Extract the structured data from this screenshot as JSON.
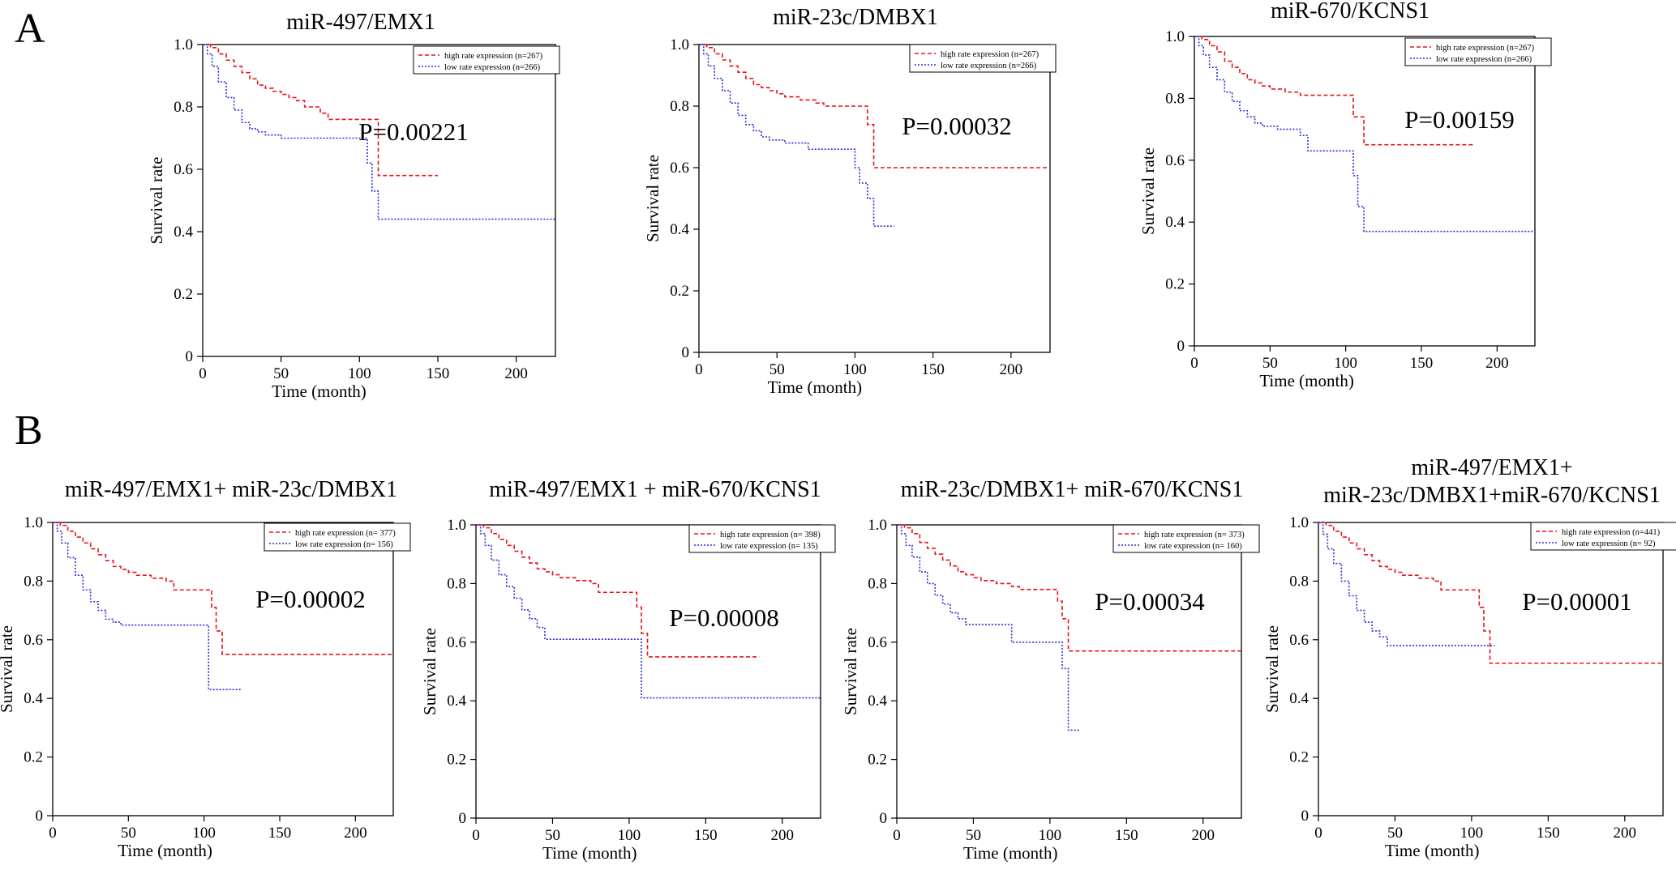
{
  "panel_labels": {
    "A": "A",
    "B": "B"
  },
  "colors": {
    "high": "#e8121c",
    "low": "#2b2bd9",
    "axis": "#000000"
  },
  "chart_data": [
    {
      "type": "line",
      "id": "a1",
      "title": "miR-497/EMX1",
      "xlabel": "Time (month)",
      "ylabel": "Survival rate",
      "xlim": [
        0,
        225
      ],
      "ylim": [
        0,
        1.0
      ],
      "xticks": [
        0,
        50,
        100,
        150,
        200
      ],
      "yticks": [
        0,
        0.2,
        0.4,
        0.6,
        0.8,
        1.0
      ],
      "xtick_labels": [
        "0",
        "50",
        "100",
        "150",
        "200"
      ],
      "ytick_labels": [
        "0",
        "0.2",
        "0.4",
        "0.6",
        "0.8",
        "1.0"
      ],
      "p_value": "P=0.00221",
      "legend": {
        "high": "high rate expression (n=267)",
        "low": "low rate expression (n=266)"
      },
      "series": [
        {
          "name": "high rate expression (n=267)",
          "key": "high",
          "x": [
            0,
            5,
            10,
            15,
            20,
            25,
            30,
            35,
            40,
            45,
            50,
            55,
            60,
            65,
            75,
            80,
            110,
            112,
            150
          ],
          "y": [
            1.0,
            0.99,
            0.97,
            0.95,
            0.93,
            0.91,
            0.89,
            0.87,
            0.86,
            0.85,
            0.84,
            0.83,
            0.82,
            0.8,
            0.78,
            0.76,
            0.76,
            0.58,
            0.58
          ]
        },
        {
          "name": "low rate expression (n=266)",
          "key": "low",
          "x": [
            0,
            3,
            6,
            10,
            15,
            20,
            25,
            30,
            35,
            40,
            45,
            50,
            105,
            108,
            112,
            225
          ],
          "y": [
            1.0,
            0.97,
            0.93,
            0.88,
            0.83,
            0.79,
            0.75,
            0.73,
            0.72,
            0.71,
            0.71,
            0.7,
            0.62,
            0.53,
            0.44,
            0.44
          ]
        }
      ]
    },
    {
      "type": "line",
      "id": "a2",
      "title": "miR-23c/DMBX1",
      "xlabel": "Time (month)",
      "ylabel": "Survival rate",
      "xlim": [
        0,
        225
      ],
      "ylim": [
        0,
        1.0
      ],
      "xticks": [
        0,
        50,
        100,
        150,
        200
      ],
      "yticks": [
        0,
        0.2,
        0.4,
        0.6,
        0.8,
        1.0
      ],
      "xtick_labels": [
        "0",
        "50",
        "100",
        "150",
        "200"
      ],
      "ytick_labels": [
        "0",
        "0.2",
        "0.4",
        "0.6",
        "0.8",
        "1.0"
      ],
      "p_value": "P=0.00032",
      "legend": {
        "high": "high rate expression (n=267)",
        "low": "low rate expression (n=266)"
      },
      "series": [
        {
          "name": "high rate expression (n=267)",
          "key": "high",
          "x": [
            0,
            5,
            10,
            15,
            20,
            25,
            30,
            35,
            40,
            45,
            50,
            55,
            65,
            75,
            80,
            90,
            105,
            108,
            112,
            225
          ],
          "y": [
            1.0,
            0.99,
            0.97,
            0.95,
            0.93,
            0.91,
            0.89,
            0.87,
            0.86,
            0.85,
            0.84,
            0.83,
            0.82,
            0.81,
            0.8,
            0.8,
            0.8,
            0.74,
            0.6,
            0.6
          ]
        },
        {
          "name": "low rate expression (n=266)",
          "key": "low",
          "x": [
            0,
            3,
            6,
            10,
            15,
            20,
            25,
            30,
            35,
            40,
            45,
            55,
            70,
            100,
            103,
            108,
            112,
            125
          ],
          "y": [
            1.0,
            0.97,
            0.93,
            0.89,
            0.85,
            0.81,
            0.77,
            0.74,
            0.72,
            0.7,
            0.69,
            0.68,
            0.66,
            0.6,
            0.55,
            0.5,
            0.41,
            0.41
          ]
        }
      ]
    },
    {
      "type": "line",
      "id": "a3",
      "title": "miR-670/KCNS1",
      "xlabel": "Time (month)",
      "ylabel": "Survival rate",
      "xlim": [
        0,
        225
      ],
      "ylim": [
        0,
        1.0
      ],
      "xticks": [
        0,
        50,
        100,
        150,
        200
      ],
      "yticks": [
        0,
        0.2,
        0.4,
        0.6,
        0.8,
        1.0
      ],
      "xtick_labels": [
        "0",
        "50",
        "100",
        "150",
        "200"
      ],
      "ytick_labels": [
        "0",
        "0.2",
        "0.4",
        "0.6",
        "0.8",
        "1.0"
      ],
      "p_value": "P=0.00159",
      "legend": {
        "high": "high rate expression (n=267)",
        "low": "low rate expression (n=266)"
      },
      "series": [
        {
          "name": "high rate expression (n=267)",
          "key": "high",
          "x": [
            0,
            5,
            10,
            15,
            20,
            25,
            30,
            35,
            40,
            45,
            50,
            60,
            70,
            100,
            105,
            112,
            185
          ],
          "y": [
            1.0,
            0.99,
            0.97,
            0.95,
            0.92,
            0.9,
            0.88,
            0.86,
            0.85,
            0.84,
            0.83,
            0.82,
            0.81,
            0.81,
            0.74,
            0.65,
            0.65
          ]
        },
        {
          "name": "low rate expression (n=266)",
          "key": "low",
          "x": [
            0,
            3,
            6,
            10,
            15,
            20,
            25,
            30,
            35,
            40,
            45,
            55,
            70,
            75,
            100,
            105,
            108,
            112,
            225
          ],
          "y": [
            1.0,
            0.97,
            0.94,
            0.9,
            0.86,
            0.82,
            0.79,
            0.76,
            0.74,
            0.72,
            0.71,
            0.7,
            0.68,
            0.63,
            0.63,
            0.55,
            0.45,
            0.37,
            0.37
          ]
        }
      ]
    },
    {
      "type": "line",
      "id": "b1",
      "title": "miR-497/EMX1+ miR-23c/DMBX1",
      "xlabel": "Time (month)",
      "ylabel": "Survival rate",
      "xlim": [
        0,
        225
      ],
      "ylim": [
        0,
        1.0
      ],
      "xticks": [
        0,
        50,
        100,
        150,
        200
      ],
      "yticks": [
        0,
        0.2,
        0.4,
        0.6,
        0.8,
        1.0
      ],
      "xtick_labels": [
        "0",
        "50",
        "100",
        "150",
        "200"
      ],
      "ytick_labels": [
        "0",
        "0.2",
        "0.4",
        "0.6",
        "0.8",
        "1.0"
      ],
      "p_value": "P=0.00002",
      "legend": {
        "high": "high rate expression (n= 377)",
        "low": "low rate expression (n= 156)"
      },
      "series": [
        {
          "name": "high rate expression (n= 377)",
          "key": "high",
          "x": [
            0,
            5,
            10,
            15,
            20,
            25,
            30,
            35,
            40,
            45,
            50,
            55,
            65,
            75,
            80,
            100,
            105,
            108,
            112,
            225
          ],
          "y": [
            1.0,
            0.99,
            0.97,
            0.95,
            0.93,
            0.91,
            0.89,
            0.87,
            0.85,
            0.84,
            0.83,
            0.82,
            0.81,
            0.8,
            0.77,
            0.77,
            0.71,
            0.63,
            0.55,
            0.55
          ]
        },
        {
          "name": "low rate expression (n= 156)",
          "key": "low",
          "x": [
            0,
            3,
            6,
            10,
            15,
            20,
            25,
            30,
            35,
            40,
            45,
            100,
            103,
            125
          ],
          "y": [
            1.0,
            0.97,
            0.93,
            0.88,
            0.82,
            0.77,
            0.73,
            0.7,
            0.67,
            0.66,
            0.65,
            0.65,
            0.43,
            0.43
          ]
        }
      ]
    },
    {
      "type": "line",
      "id": "b2",
      "title": "miR-497/EMX1 + miR-670/KCNS1",
      "xlabel": "Time (month)",
      "ylabel": "Survival rate",
      "xlim": [
        0,
        225
      ],
      "ylim": [
        0,
        1.0
      ],
      "xticks": [
        0,
        50,
        100,
        150,
        200
      ],
      "yticks": [
        0,
        0.2,
        0.4,
        0.6,
        0.8,
        1.0
      ],
      "xtick_labels": [
        "0",
        "50",
        "100",
        "150",
        "200"
      ],
      "ytick_labels": [
        "0",
        "0.2",
        "0.4",
        "0.6",
        "0.8",
        "1.0"
      ],
      "p_value": "P=0.00008",
      "legend": {
        "high": "high rate expression (n= 398)",
        "low": "low rate expression (n= 135)"
      },
      "series": [
        {
          "name": "high rate expression (n= 398)",
          "key": "high",
          "x": [
            0,
            5,
            10,
            15,
            20,
            25,
            30,
            35,
            40,
            45,
            50,
            55,
            65,
            75,
            80,
            100,
            105,
            108,
            112,
            185
          ],
          "y": [
            1.0,
            0.99,
            0.97,
            0.95,
            0.93,
            0.91,
            0.89,
            0.87,
            0.85,
            0.84,
            0.83,
            0.82,
            0.81,
            0.8,
            0.77,
            0.77,
            0.72,
            0.63,
            0.55,
            0.55
          ]
        },
        {
          "name": "low rate expression (n= 135)",
          "key": "low",
          "x": [
            0,
            3,
            6,
            10,
            15,
            20,
            25,
            30,
            35,
            40,
            45,
            105,
            108,
            225
          ],
          "y": [
            1.0,
            0.97,
            0.93,
            0.88,
            0.83,
            0.79,
            0.75,
            0.71,
            0.68,
            0.65,
            0.61,
            0.61,
            0.41,
            0.41
          ]
        }
      ]
    },
    {
      "type": "line",
      "id": "b3",
      "title": "miR-23c/DMBX1+ miR-670/KCNS1",
      "xlabel": "Time (month)",
      "ylabel": "Survival rate",
      "xlim": [
        0,
        225
      ],
      "ylim": [
        0,
        1.0
      ],
      "xticks": [
        0,
        50,
        100,
        150,
        200
      ],
      "yticks": [
        0,
        0.2,
        0.4,
        0.6,
        0.8,
        1.0
      ],
      "xtick_labels": [
        "0",
        "50",
        "100",
        "150",
        "200"
      ],
      "ytick_labels": [
        "0",
        "0.2",
        "0.4",
        "0.6",
        "0.8",
        "1.0"
      ],
      "p_value": "P=0.00034",
      "legend": {
        "high": "high rate expression (n= 373)",
        "low": "low rate expression (n= 160)"
      },
      "series": [
        {
          "name": "high rate expression (n= 373)",
          "key": "high",
          "x": [
            0,
            5,
            10,
            15,
            20,
            25,
            30,
            35,
            40,
            45,
            50,
            55,
            65,
            75,
            80,
            100,
            105,
            108,
            112,
            225
          ],
          "y": [
            1.0,
            0.99,
            0.97,
            0.94,
            0.92,
            0.9,
            0.88,
            0.86,
            0.84,
            0.83,
            0.82,
            0.81,
            0.8,
            0.79,
            0.78,
            0.78,
            0.74,
            0.68,
            0.57,
            0.57
          ]
        },
        {
          "name": "low rate expression (n= 160)",
          "key": "low",
          "x": [
            0,
            3,
            6,
            10,
            15,
            20,
            25,
            30,
            35,
            40,
            45,
            50,
            75,
            105,
            108,
            112,
            120
          ],
          "y": [
            1.0,
            0.97,
            0.93,
            0.89,
            0.84,
            0.8,
            0.76,
            0.73,
            0.7,
            0.68,
            0.66,
            0.66,
            0.6,
            0.6,
            0.51,
            0.3,
            0.3
          ]
        }
      ]
    },
    {
      "type": "line",
      "id": "b4",
      "title": "miR-497/EMX1+\nmiR-23c/DMBX1+miR-670/KCNS1",
      "xlabel": "Time (month)",
      "ylabel": "Survival rate",
      "xlim": [
        0,
        225
      ],
      "ylim": [
        0,
        1.0
      ],
      "xticks": [
        0,
        50,
        100,
        150,
        200
      ],
      "yticks": [
        0,
        0.2,
        0.4,
        0.6,
        0.8,
        1.0
      ],
      "xtick_labels": [
        "0",
        "50",
        "100",
        "150",
        "200"
      ],
      "ytick_labels": [
        "0",
        "0.2",
        "0.4",
        "0.6",
        "0.8",
        "1.0"
      ],
      "p_value": "P=0.00001",
      "legend": {
        "high": "high rate expression (n=441)",
        "low": "low rate expression (n= 92)"
      },
      "series": [
        {
          "name": "high rate expression (n=441)",
          "key": "high",
          "x": [
            0,
            5,
            10,
            15,
            20,
            25,
            30,
            35,
            40,
            45,
            50,
            55,
            65,
            75,
            80,
            100,
            105,
            108,
            112,
            225
          ],
          "y": [
            1.0,
            0.99,
            0.97,
            0.95,
            0.93,
            0.91,
            0.89,
            0.87,
            0.85,
            0.84,
            0.83,
            0.82,
            0.81,
            0.8,
            0.77,
            0.77,
            0.71,
            0.63,
            0.52,
            0.52
          ]
        },
        {
          "name": "low rate expression (n= 92)",
          "key": "low",
          "x": [
            0,
            3,
            6,
            10,
            15,
            20,
            25,
            30,
            35,
            40,
            45,
            110,
            115
          ],
          "y": [
            1.0,
            0.96,
            0.91,
            0.86,
            0.8,
            0.75,
            0.7,
            0.66,
            0.63,
            0.61,
            0.58,
            0.58,
            0.58
          ]
        }
      ]
    }
  ]
}
